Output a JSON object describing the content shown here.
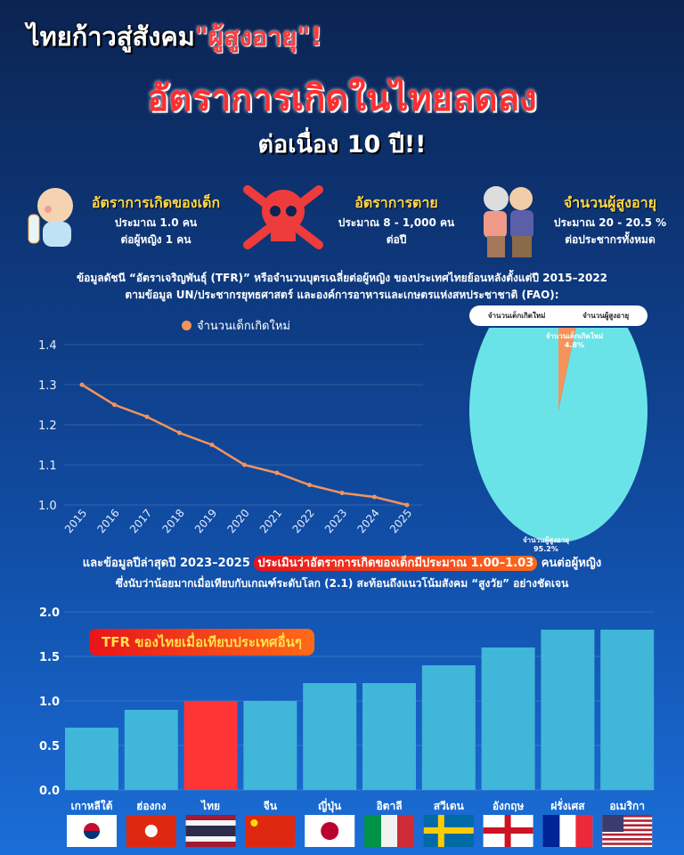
{
  "header": {
    "line1_prefix": "ไทยก้าวสู่สังคม",
    "line1_highlight": "\"ผู้สูงอายุ\"!",
    "line2": "อัตราการเกิดในไทยลดลง",
    "line3": "ต่อเนื่อง 10 ปี!!"
  },
  "stats": [
    {
      "title": "อัตราการเกิดของเด็ก",
      "line1": "ประมาณ 1.0 คน",
      "line2": "ต่อผู้หญิง 1 คน",
      "icon": "baby-icon"
    },
    {
      "title": "อัตราการตาย",
      "line1": "ประมาณ 8 - 1,000 คน",
      "line2": "ต่อปี",
      "icon": "skull-icon"
    },
    {
      "title": "จำนวนผู้สูงอายุ",
      "line1": "ประมาณ 20 - 20.5 %",
      "line2": "ต่อประชากรทั้งหมด",
      "icon": "elderly-couple-icon"
    }
  ],
  "intro": {
    "line1": "ข้อมูลดัชนี “อัตราเจริญพันธุ์ (TFR)” หรือจำนวนบุตรเฉลี่ยต่อผู้หญิง ของประเทศไทยย้อนหลังตั้งแต่ปี 2015–2022",
    "line2": "ตามข้อมูล UN/ประชากรยุทธศาสตร์ และองค์การอาหารและเกษตรแห่งสหประชาชาติ (FAO):"
  },
  "summary": {
    "prefix": "และข้อมูลปีล่าสุดปี 2023–2025 ",
    "highlight": "ประเมินว่าอัตราการเกิดของเด็กมีประมาณ 1.00–1.03",
    "suffix": " คนต่อผู้หญิง",
    "line2": "ซึ่งนับว่าน้อยมากเมื่อเทียบกับเกณฑ์ระดับโลก (2.1) สะท้อนถึงแนวโน้มสังคม “สูงวัย” อย่างชัดเจน"
  },
  "chart_data": [
    {
      "type": "line",
      "legend": "จำนวนเด็กเกิดใหม่",
      "color": "#f5935a",
      "x": [
        "2015",
        "2016",
        "2017",
        "2018",
        "2019",
        "2020",
        "2021",
        "2022",
        "2023",
        "2024",
        "2025"
      ],
      "values": [
        1.3,
        1.25,
        1.22,
        1.18,
        1.15,
        1.1,
        1.08,
        1.05,
        1.03,
        1.02,
        1.0
      ],
      "yticks": [
        "1.0",
        "1.1",
        "1.2",
        "1.3",
        "1.4"
      ],
      "ylim": [
        1.0,
        1.4
      ],
      "grid": true
    },
    {
      "type": "pie",
      "legend": [
        "จำนวนเด็กเกิดใหม่",
        "จำนวนผู้สูงอายุ"
      ],
      "slices": [
        {
          "label": "จำนวนเด็กเกิดใหม่",
          "value": 4.8,
          "text": "4.8%",
          "color": "#f5935a"
        },
        {
          "label": "จำนวนผู้สูงอายุ",
          "value": 95.2,
          "text": "95.2%",
          "color": "#6ae3e8"
        }
      ]
    },
    {
      "type": "bar",
      "title": "TFR ของไทยเมื่อเทียบประเทศอื่นๆ",
      "categories": [
        "เกาหลีใต้",
        "ฮ่องกง",
        "ไทย",
        "จีน",
        "ญี่ปุ่น",
        "อิตาลี",
        "สวีเดน",
        "อังกฤษ",
        "ฝรั่งเศส",
        "อเมริกา"
      ],
      "flags": [
        "kr",
        "hk",
        "th",
        "cn",
        "jp",
        "it",
        "se",
        "gb-eng",
        "fr",
        "us"
      ],
      "values": [
        0.7,
        0.9,
        1.0,
        1.0,
        1.2,
        1.2,
        1.4,
        1.6,
        1.8,
        1.8
      ],
      "yticks": [
        "0.0",
        "0.5",
        "1.0",
        "1.5",
        "2.0"
      ],
      "ylim": [
        0,
        2
      ],
      "color": "#40b6d8",
      "highlight_color": "#ff3434",
      "highlight_index": 2,
      "grid": true
    }
  ]
}
